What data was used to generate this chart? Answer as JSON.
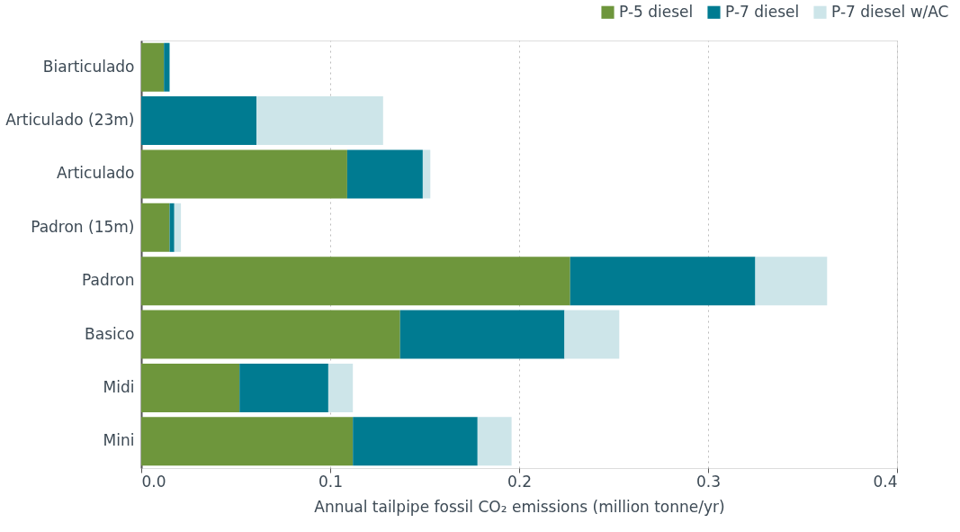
{
  "chart_data": {
    "type": "bar",
    "orientation": "horizontal",
    "stacked": true,
    "categories": [
      "Biarticulado",
      "Articulado (23m)",
      "Articulado",
      "Padron (15m)",
      "Padron",
      "Basico",
      "Midi",
      "Mini"
    ],
    "series": [
      {
        "name": "P-5 diesel",
        "color": "#6e963c",
        "values": [
          0.012,
          0,
          0.109,
          0.015,
          0.227,
          0.137,
          0.052,
          0.112
        ]
      },
      {
        "name": "P-7 diesel",
        "color": "#007b91",
        "values": [
          0.003,
          0.061,
          0.04,
          0.0025,
          0.098,
          0.087,
          0.047,
          0.066
        ]
      },
      {
        "name": "P-7 diesel w/AC",
        "color": "#cde5e9",
        "values": [
          0,
          0.067,
          0.004,
          0.0035,
          0.038,
          0.029,
          0.013,
          0.018
        ]
      }
    ],
    "xlabel": "Annual tailpipe fossil CO₂ emissions (million tonne/yr)",
    "xlim": [
      0,
      0.4
    ],
    "xticks": [
      {
        "value": 0,
        "label": "0.0"
      },
      0.1,
      0.2,
      0.3,
      0.4
    ],
    "grid": "x",
    "legend": "top right"
  }
}
